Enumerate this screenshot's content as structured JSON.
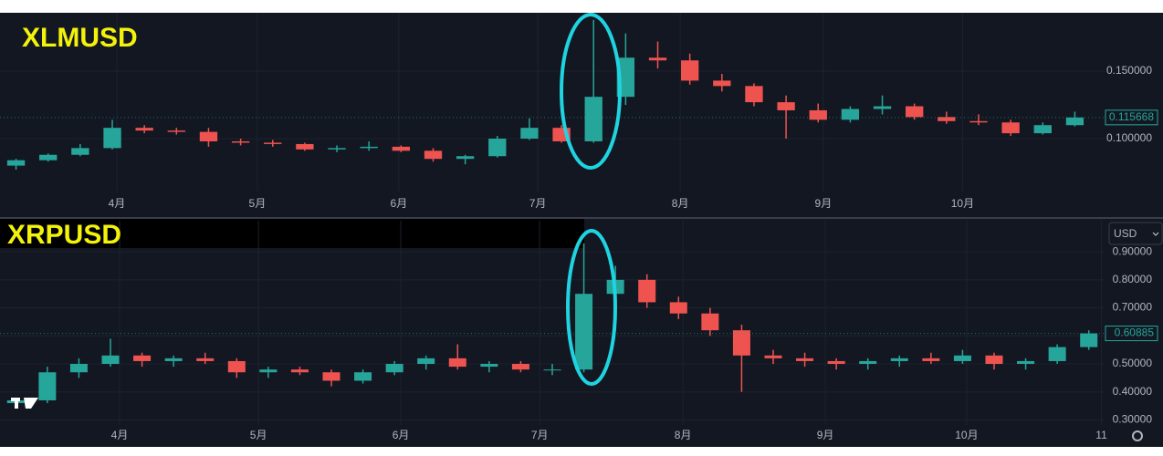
{
  "chart_data": [
    {
      "type": "candlestick",
      "title": "XLMUSD",
      "up_color": "#26a69a",
      "down_color": "#ef5350",
      "grid": true,
      "open": [
        0.08,
        0.084,
        0.088,
        0.093,
        0.108,
        0.106,
        0.105,
        0.098,
        0.097,
        0.096,
        0.092,
        0.093,
        0.094,
        0.091,
        0.085,
        0.087,
        0.1,
        0.108,
        0.098,
        0.131,
        0.16,
        0.158,
        0.143,
        0.139,
        0.127,
        0.121,
        0.114,
        0.122,
        0.124,
        0.116,
        0.113,
        0.112,
        0.104,
        0.11
      ],
      "high": [
        0.085,
        0.089,
        0.096,
        0.114,
        0.11,
        0.108,
        0.108,
        0.1,
        0.099,
        0.097,
        0.095,
        0.098,
        0.095,
        0.093,
        0.088,
        0.102,
        0.115,
        0.11,
        0.188,
        0.178,
        0.172,
        0.163,
        0.148,
        0.141,
        0.132,
        0.126,
        0.124,
        0.132,
        0.126,
        0.12,
        0.118,
        0.114,
        0.112,
        0.12
      ],
      "low": [
        0.077,
        0.083,
        0.087,
        0.092,
        0.104,
        0.103,
        0.094,
        0.095,
        0.094,
        0.091,
        0.09,
        0.091,
        0.09,
        0.083,
        0.081,
        0.086,
        0.099,
        0.097,
        0.097,
        0.125,
        0.152,
        0.14,
        0.135,
        0.124,
        0.1,
        0.112,
        0.112,
        0.118,
        0.114,
        0.111,
        0.11,
        0.102,
        0.103,
        0.109
      ],
      "close": [
        0.084,
        0.088,
        0.093,
        0.108,
        0.106,
        0.105,
        0.098,
        0.097,
        0.096,
        0.092,
        0.093,
        0.094,
        0.091,
        0.085,
        0.087,
        0.1,
        0.108,
        0.098,
        0.131,
        0.16,
        0.158,
        0.143,
        0.139,
        0.127,
        0.121,
        0.114,
        0.122,
        0.124,
        0.116,
        0.113,
        0.112,
        0.104,
        0.11,
        0.115668
      ],
      "last_price": 0.115668,
      "xlim": [
        -0.5,
        33.5
      ],
      "xticks": [
        {
          "value": 3.14,
          "label": "4月"
        },
        {
          "value": 7.52,
          "label": "5月"
        },
        {
          "value": 11.93,
          "label": "6月"
        },
        {
          "value": 16.26,
          "label": "7月"
        },
        {
          "value": 20.7,
          "label": "8月"
        },
        {
          "value": 25.16,
          "label": "9月"
        },
        {
          "value": 29.5,
          "label": "10月"
        }
      ],
      "ylim": [
        0.0608,
        0.1933
      ],
      "yticks": [
        {
          "value": 0.1,
          "label": "0.100000"
        },
        {
          "value": 0.15,
          "label": "0.150000"
        }
      ]
    },
    {
      "type": "candlestick",
      "title": "XRPUSD",
      "currency": "USD",
      "up_color": "#26a69a",
      "down_color": "#ef5350",
      "grid": true,
      "open": [
        0.36,
        0.37,
        0.47,
        0.5,
        0.53,
        0.51,
        0.52,
        0.51,
        0.47,
        0.48,
        0.47,
        0.44,
        0.47,
        0.5,
        0.52,
        0.49,
        0.5,
        0.48,
        0.48,
        0.75,
        0.8,
        0.72,
        0.68,
        0.62,
        0.53,
        0.52,
        0.51,
        0.5,
        0.51,
        0.52,
        0.51,
        0.53,
        0.5,
        0.51,
        0.56
      ],
      "high": [
        0.38,
        0.49,
        0.52,
        0.59,
        0.54,
        0.53,
        0.54,
        0.52,
        0.49,
        0.49,
        0.48,
        0.48,
        0.51,
        0.53,
        0.57,
        0.51,
        0.51,
        0.5,
        0.93,
        0.85,
        0.82,
        0.74,
        0.7,
        0.64,
        0.55,
        0.54,
        0.52,
        0.52,
        0.53,
        0.54,
        0.55,
        0.54,
        0.52,
        0.57,
        0.62
      ],
      "low": [
        0.35,
        0.36,
        0.45,
        0.49,
        0.49,
        0.49,
        0.5,
        0.45,
        0.45,
        0.46,
        0.42,
        0.43,
        0.46,
        0.48,
        0.48,
        0.47,
        0.47,
        0.46,
        0.47,
        0.7,
        0.7,
        0.66,
        0.6,
        0.4,
        0.5,
        0.49,
        0.48,
        0.48,
        0.49,
        0.5,
        0.5,
        0.48,
        0.48,
        0.5,
        0.55
      ],
      "close": [
        0.37,
        0.47,
        0.5,
        0.53,
        0.51,
        0.52,
        0.51,
        0.47,
        0.48,
        0.47,
        0.44,
        0.47,
        0.5,
        0.52,
        0.49,
        0.5,
        0.48,
        0.48,
        0.75,
        0.8,
        0.72,
        0.68,
        0.62,
        0.53,
        0.52,
        0.51,
        0.5,
        0.51,
        0.52,
        0.51,
        0.53,
        0.5,
        0.51,
        0.56,
        0.60885
      ],
      "last_price": 0.60885,
      "xlim": [
        -0.5,
        34.5
      ],
      "xticks": [
        {
          "value": 3.29,
          "label": "4月"
        },
        {
          "value": 7.69,
          "label": "5月"
        },
        {
          "value": 12.2,
          "label": "6月"
        },
        {
          "value": 16.6,
          "label": "7月"
        },
        {
          "value": 21.14,
          "label": "8月"
        },
        {
          "value": 25.65,
          "label": "9月"
        },
        {
          "value": 30.13,
          "label": "10月"
        },
        {
          "value": 34.4,
          "label": "11"
        }
      ],
      "ylim": [
        0.282,
        1.011
      ],
      "yticks": [
        {
          "value": 0.3,
          "label": "0.30000"
        },
        {
          "value": 0.4,
          "label": "0.40000"
        },
        {
          "value": 0.5,
          "label": "0.50000"
        },
        {
          "value": 0.6,
          "label": "0.60000"
        },
        {
          "value": 0.7,
          "label": "0.70000"
        },
        {
          "value": 0.8,
          "label": "0.80000"
        },
        {
          "value": 0.9,
          "label": "0.90000"
        }
      ]
    }
  ]
}
